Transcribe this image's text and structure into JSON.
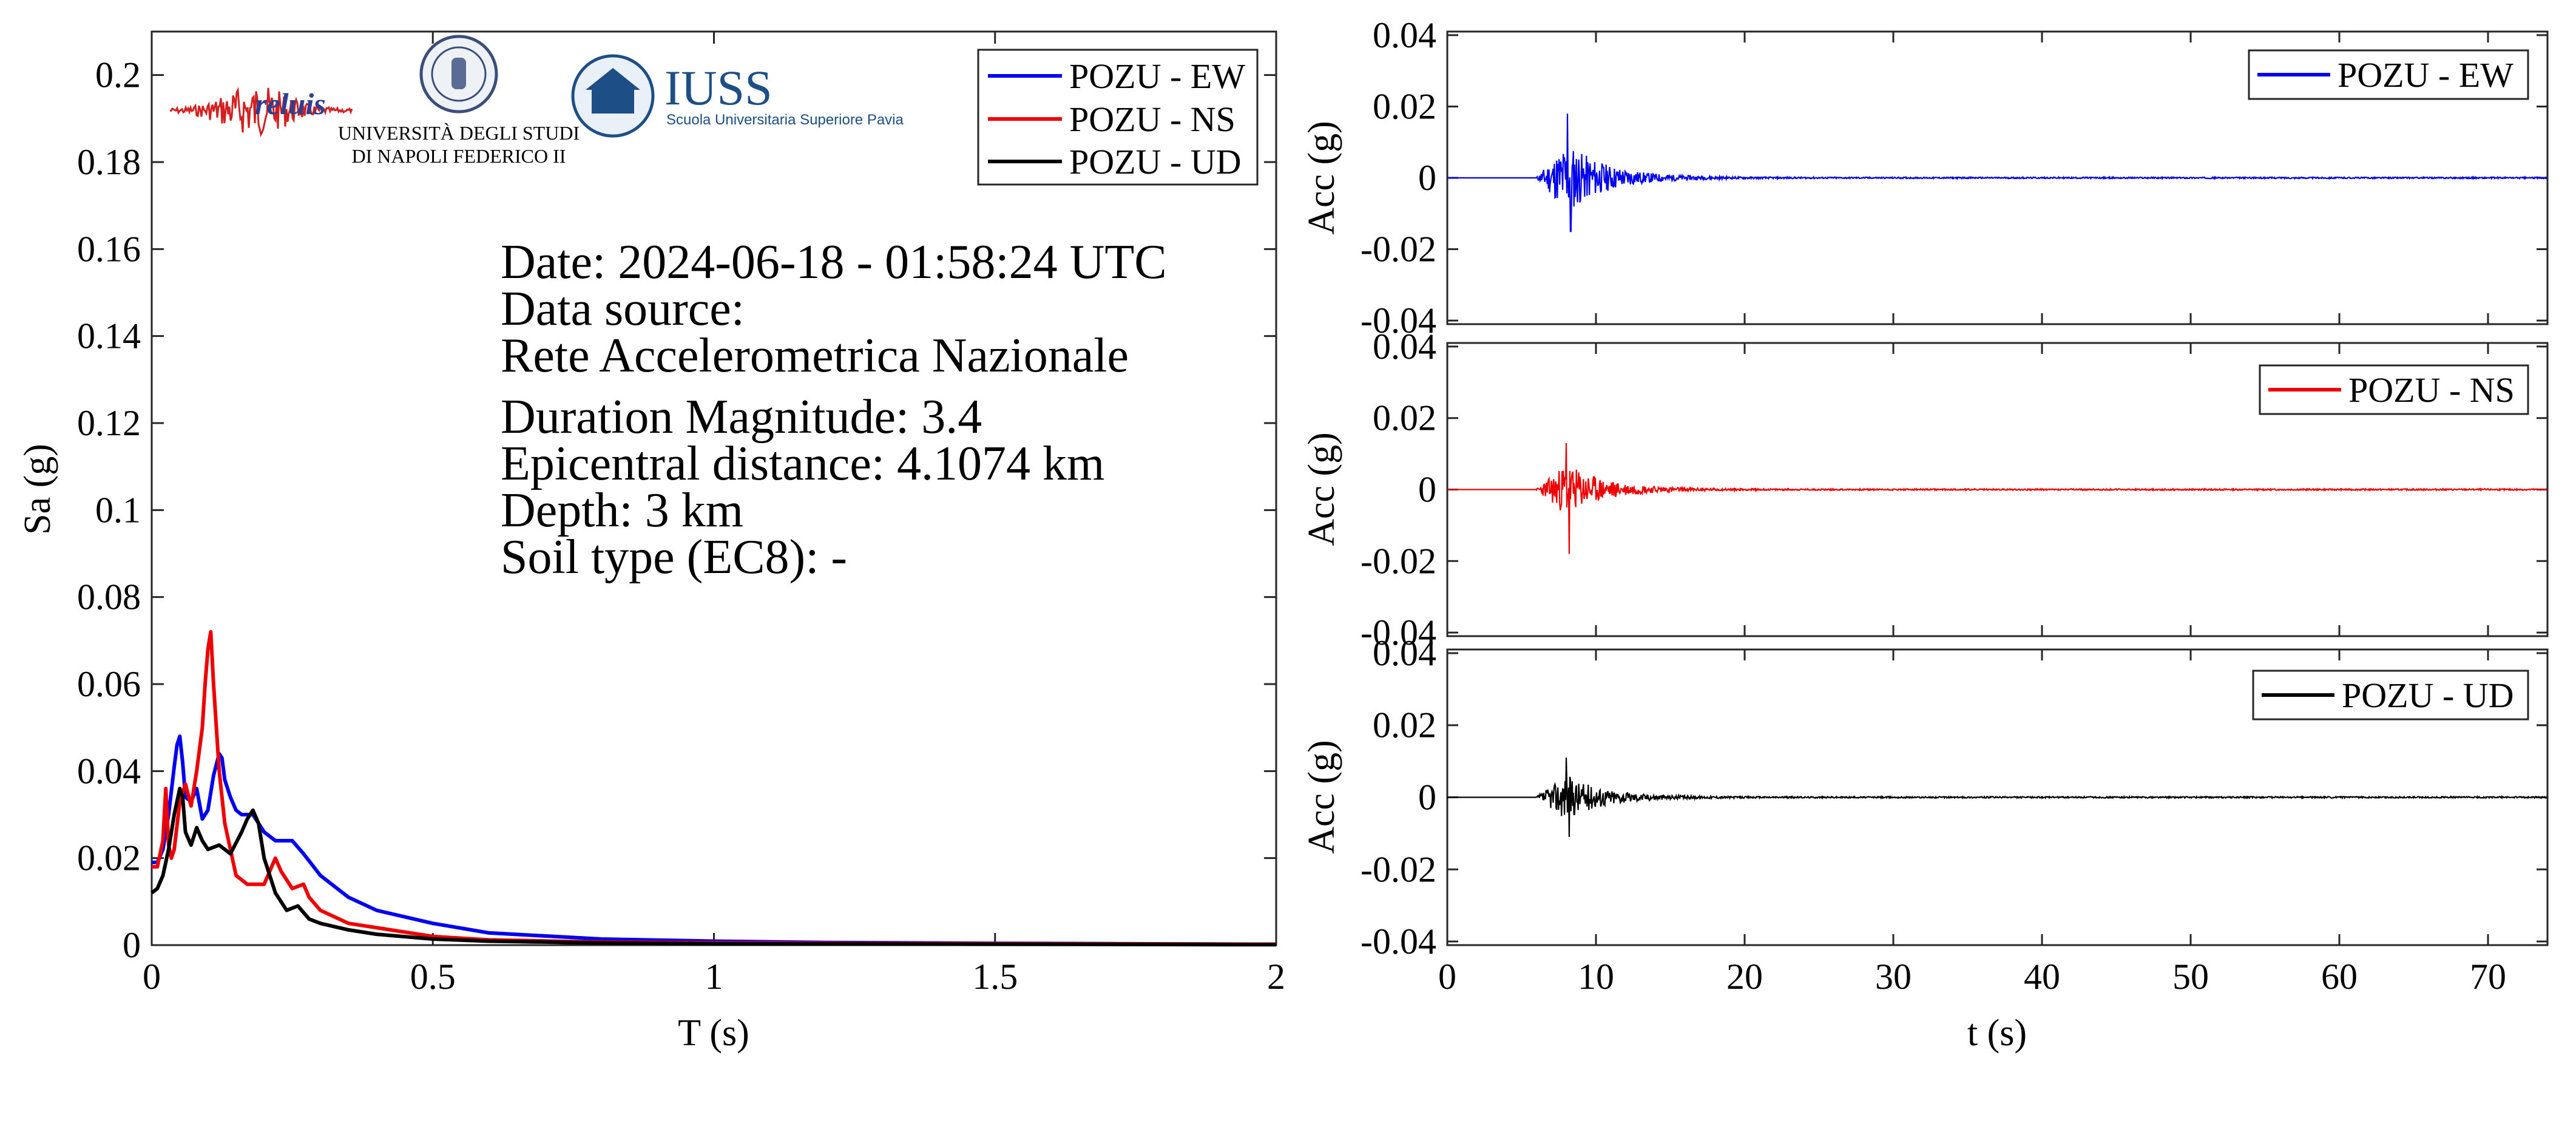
{
  "logos": {
    "reluis": "reluis",
    "unina_line1": "UNIVERSITÀ DEGLI STUDI",
    "unina_line2": "DI NAPOLI FEDERICO II",
    "iuss_name": "IUSS",
    "iuss_sub": "Scuola Universitaria Superiore Pavia"
  },
  "info": {
    "date": "Date: 2024-06-18 - 01:58:24 UTC",
    "source_label": "Data source:",
    "source": "Rete Accelerometrica Nazionale",
    "magnitude": "Duration Magnitude: 3.4",
    "distance": "Epicentral distance: 4.1074 km",
    "depth": "Depth: 3 km",
    "soil": "Soil type (EC8): -"
  },
  "colors": {
    "ew": "#0000ee",
    "ns": "#ee0000",
    "ud": "#000000"
  },
  "chart_data": [
    {
      "type": "line",
      "xlabel": "T (s)",
      "ylabel": "Sa (g)",
      "xlim": [
        0,
        2
      ],
      "ylim": [
        0,
        0.21
      ],
      "xticks": [
        0,
        0.5,
        1,
        1.5,
        2
      ],
      "xtick_labels": [
        "0",
        "0.5",
        "1",
        "1.5",
        "2"
      ],
      "yticks": [
        0,
        0.02,
        0.04,
        0.06,
        0.08,
        0.1,
        0.12,
        0.14,
        0.16,
        0.18,
        0.2
      ],
      "ytick_labels": [
        "0",
        "0.02",
        "0.04",
        "0.06",
        "0.08",
        "0.1",
        "0.12",
        "0.14",
        "0.16",
        "0.18",
        "0.2"
      ],
      "legend_position": "top-right",
      "grid": false,
      "series": [
        {
          "name": "POZU - EW",
          "color": "#0000ee",
          "x": [
            0,
            0.01,
            0.02,
            0.03,
            0.04,
            0.045,
            0.05,
            0.055,
            0.06,
            0.07,
            0.08,
            0.09,
            0.1,
            0.11,
            0.12,
            0.125,
            0.13,
            0.14,
            0.15,
            0.16,
            0.18,
            0.2,
            0.22,
            0.25,
            0.27,
            0.3,
            0.35,
            0.4,
            0.5,
            0.6,
            0.8,
            1.0,
            1.2,
            1.5,
            2.0
          ],
          "y": [
            0.019,
            0.019,
            0.022,
            0.03,
            0.041,
            0.046,
            0.048,
            0.042,
            0.034,
            0.033,
            0.036,
            0.029,
            0.031,
            0.039,
            0.044,
            0.043,
            0.038,
            0.034,
            0.031,
            0.03,
            0.03,
            0.026,
            0.024,
            0.024,
            0.021,
            0.016,
            0.011,
            0.008,
            0.005,
            0.0028,
            0.0014,
            0.0009,
            0.0006,
            0.0004,
            0.0002
          ]
        },
        {
          "name": "POZU - NS",
          "color": "#ee0000",
          "x": [
            0,
            0.01,
            0.02,
            0.025,
            0.03,
            0.035,
            0.04,
            0.05,
            0.06,
            0.07,
            0.08,
            0.09,
            0.095,
            0.1,
            0.105,
            0.11,
            0.12,
            0.13,
            0.15,
            0.17,
            0.2,
            0.22,
            0.23,
            0.25,
            0.27,
            0.28,
            0.3,
            0.35,
            0.4,
            0.5,
            0.6,
            0.8,
            1.0,
            1.5,
            2.0
          ],
          "y": [
            0.018,
            0.018,
            0.024,
            0.036,
            0.023,
            0.02,
            0.022,
            0.033,
            0.037,
            0.032,
            0.04,
            0.05,
            0.06,
            0.068,
            0.072,
            0.06,
            0.04,
            0.028,
            0.016,
            0.014,
            0.014,
            0.02,
            0.017,
            0.013,
            0.014,
            0.011,
            0.008,
            0.005,
            0.004,
            0.002,
            0.0012,
            0.0007,
            0.0005,
            0.0003,
            0.0002
          ]
        },
        {
          "name": "POZU - UD",
          "color": "#000000",
          "x": [
            0,
            0.01,
            0.02,
            0.03,
            0.04,
            0.05,
            0.055,
            0.06,
            0.07,
            0.08,
            0.09,
            0.1,
            0.12,
            0.14,
            0.16,
            0.17,
            0.18,
            0.19,
            0.2,
            0.22,
            0.24,
            0.26,
            0.28,
            0.3,
            0.35,
            0.4,
            0.5,
            0.6,
            0.8,
            1.0,
            1.5,
            2.0
          ],
          "y": [
            0.012,
            0.013,
            0.016,
            0.022,
            0.03,
            0.036,
            0.034,
            0.026,
            0.023,
            0.027,
            0.024,
            0.022,
            0.023,
            0.021,
            0.026,
            0.029,
            0.031,
            0.028,
            0.02,
            0.012,
            0.008,
            0.009,
            0.006,
            0.005,
            0.0035,
            0.0025,
            0.0014,
            0.0009,
            0.0005,
            0.0003,
            0.0002,
            0.0001
          ]
        }
      ]
    },
    {
      "type": "line",
      "xlabel": "",
      "ylabel": "Acc (g)",
      "xlim": [
        0,
        74
      ],
      "ylim": [
        -0.041,
        0.041
      ],
      "yticks": [
        -0.04,
        -0.02,
        0,
        0.02,
        0.04
      ],
      "ytick_labels": [
        "-0.04",
        "-0.02",
        "0",
        "0.02",
        "0.04"
      ],
      "legend_position": "top-right",
      "series": [
        {
          "name": "POZU - EW",
          "color": "#0000ee",
          "signal_start": 6,
          "peak_time": 8.1,
          "peak_positive": 0.018,
          "peak_negative": -0.015,
          "duration": 74
        }
      ]
    },
    {
      "type": "line",
      "xlabel": "",
      "ylabel": "Acc (g)",
      "xlim": [
        0,
        74
      ],
      "ylim": [
        -0.041,
        0.041
      ],
      "yticks": [
        -0.04,
        -0.02,
        0,
        0.02,
        0.04
      ],
      "ytick_labels": [
        "-0.04",
        "-0.02",
        "0",
        "0.02",
        "0.04"
      ],
      "legend_position": "top-right",
      "series": [
        {
          "name": "POZU - NS",
          "color": "#ee0000",
          "signal_start": 6,
          "peak_time": 8.0,
          "peak_positive": 0.013,
          "peak_negative": -0.018,
          "duration": 74
        }
      ]
    },
    {
      "type": "line",
      "xlabel": "t (s)",
      "ylabel": "Acc (g)",
      "xlim": [
        0,
        74
      ],
      "ylim": [
        -0.041,
        0.041
      ],
      "xticks": [
        0,
        10,
        20,
        30,
        40,
        50,
        60,
        70
      ],
      "xtick_labels": [
        "0",
        "10",
        "20",
        "30",
        "40",
        "50",
        "60",
        "70"
      ],
      "yticks": [
        -0.04,
        -0.02,
        0,
        0.02,
        0.04
      ],
      "ytick_labels": [
        "-0.04",
        "-0.02",
        "0",
        "0.02",
        "0.04"
      ],
      "legend_position": "top-right",
      "series": [
        {
          "name": "POZU - UD",
          "color": "#000000",
          "signal_start": 6,
          "peak_time": 8.0,
          "peak_positive": 0.011,
          "peak_negative": -0.011,
          "duration": 74
        }
      ]
    }
  ]
}
